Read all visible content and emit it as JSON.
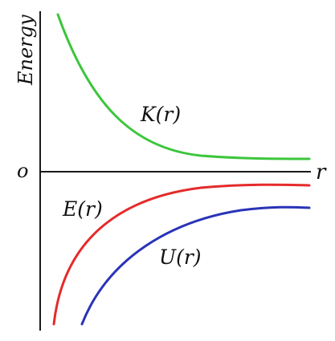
{
  "diagram": {
    "y_axis_label": "Energy",
    "x_axis_label": "r",
    "origin_label": "o",
    "curves": {
      "kinetic": {
        "label": "K(r)",
        "color": "#3cc63c"
      },
      "total": {
        "label": "E(r)",
        "color": "#e52a2a"
      },
      "potential": {
        "label": "U(r)",
        "color": "#2a33b8"
      }
    }
  }
}
